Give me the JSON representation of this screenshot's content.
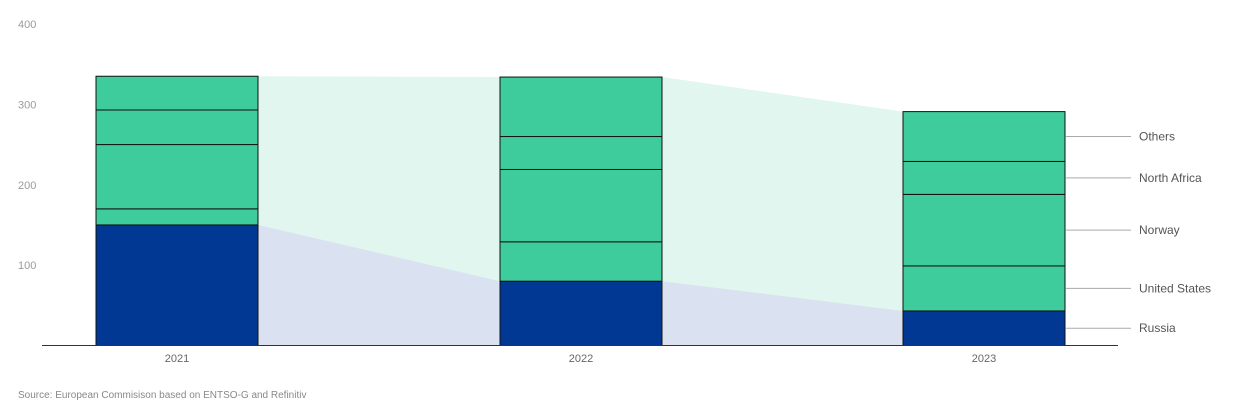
{
  "chart_data": {
    "type": "bar",
    "stacked": true,
    "categories": [
      "2021",
      "2022",
      "2023"
    ],
    "series": [
      {
        "name": "Russia",
        "values": [
          150,
          80,
          43
        ],
        "color": "#003893"
      },
      {
        "name": "United States",
        "values": [
          20,
          49,
          56
        ],
        "color": "#3ecc9c"
      },
      {
        "name": "Norway",
        "values": [
          80,
          90,
          89
        ],
        "color": "#3ecc9c"
      },
      {
        "name": "North Africa",
        "values": [
          43,
          41,
          41
        ],
        "color": "#3ecc9c"
      },
      {
        "name": "Others",
        "values": [
          42,
          74,
          62
        ],
        "color": "#3ecc9c"
      }
    ],
    "yticks": [
      100,
      200,
      300,
      400
    ],
    "ylim": [
      0,
      400
    ],
    "grid": false,
    "legend": "right, labels pointing to 2023 bar segments",
    "connector_colors": {
      "russia_band": "#dae2f1",
      "total_band": "#e0f6ef"
    }
  },
  "source": "Source: European Commisison based on ENTSO-G and Refinitiv"
}
